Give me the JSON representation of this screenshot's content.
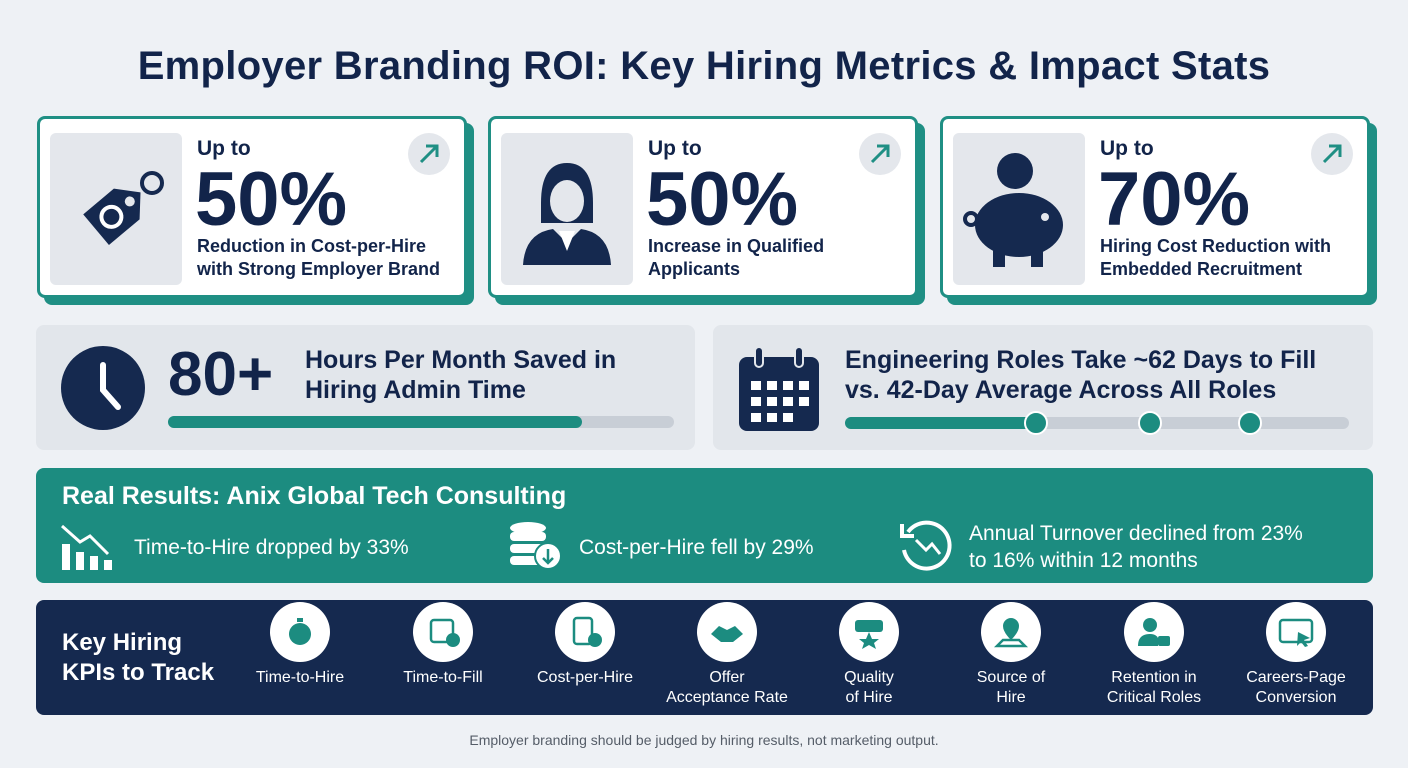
{
  "header": {
    "title": "Employer Branding ROI: Key Hiring Metrics & Impact Stats"
  },
  "highlights": [
    {
      "prefix": "Up to",
      "value": "50%",
      "description": "Reduction in Cost-per-Hire\nwith Strong Employer Brand"
    },
    {
      "prefix": "Up to",
      "value": "50%",
      "description": "Increase in Qualified\nApplicants"
    },
    {
      "prefix": "Up to",
      "value": "70%",
      "description": "Hiring Cost Reduction with\nEmbedded Recruitment"
    }
  ],
  "stats": [
    {
      "value": "80+",
      "description": "Hours Per Month Saved in\nHiring Admin Time"
    },
    {
      "description": "Engineering Roles Take ~62 Days to Fill\nvs. 42-Day Average Across All Roles"
    }
  ],
  "case_study": {
    "title": "Real Results: Anix Global Tech Consulting",
    "results": [
      "Time-to-Hire dropped by 33%",
      "Cost-per-Hire fell by 29%",
      "Annual Turnover declined from 23%\nto 16% within 12 months"
    ]
  },
  "kpis": {
    "title": "Key Hiring\nKPIs to Track",
    "items": [
      "Time-to-Hire",
      "Time-to-Fill",
      "Cost-per-Hire",
      "Offer\nAcceptance Rate",
      "Quality\nof Hire",
      "Source of\nHire",
      "Retention in\nCritical Roles",
      "Careers-Page\nConversion"
    ]
  },
  "footer": {
    "note": "Employer branding should be judged by hiring results, not marketing output."
  }
}
